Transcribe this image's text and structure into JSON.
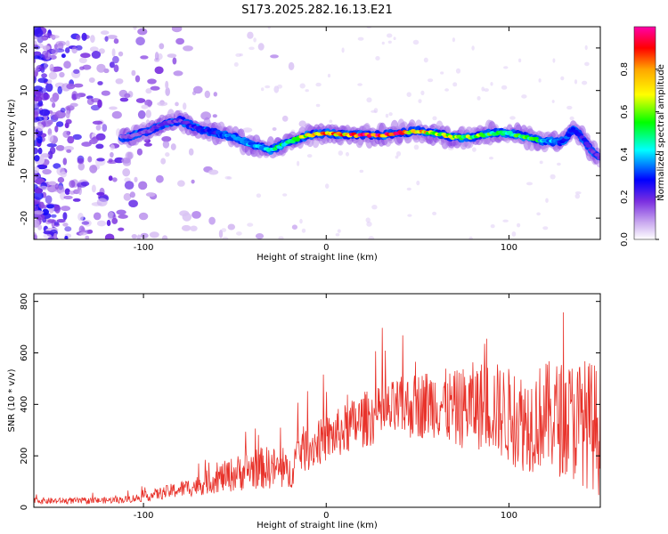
{
  "title": "S173.2025.282.16.13.E21",
  "chart_data": [
    {
      "type": "heatmap",
      "xlabel": "Height of straight line (km)",
      "ylabel": "Frequency (Hz)",
      "xlim": [
        -160,
        150
      ],
      "ylim": [
        -25,
        25
      ],
      "xticks": [
        -100,
        0,
        100
      ],
      "yticks": [
        -20,
        -10,
        0,
        10,
        20
      ],
      "colorbar": {
        "label": "Normalized spectral amplitude",
        "range": [
          0,
          1
        ],
        "ticks": [
          0.0,
          0.2,
          0.4,
          0.6,
          0.8
        ],
        "colors": [
          "#ffffff",
          "#c9a8ef",
          "#7a2ee0",
          "#0000ff",
          "#00ffff",
          "#00ff00",
          "#ffff00",
          "#ffa500",
          "#ff0000",
          "#ff00aa"
        ]
      },
      "ridge": {
        "x": [
          -110,
          -100,
          -90,
          -80,
          -70,
          -60,
          -50,
          -40,
          -30,
          -20,
          -10,
          0,
          10,
          20,
          30,
          40,
          50,
          60,
          70,
          80,
          90,
          100,
          110,
          120,
          130,
          135,
          140,
          145,
          150
        ],
        "freq": [
          -1,
          0,
          2,
          3,
          1,
          0,
          -1,
          -3,
          -4,
          -2,
          -0.5,
          0,
          -0.5,
          -0.5,
          -0.5,
          0,
          0.5,
          0,
          -1,
          -1,
          0,
          0,
          -1,
          -2,
          -2,
          1,
          -1,
          -4,
          -6
        ],
        "amplitude": [
          0.15,
          0.15,
          0.2,
          0.2,
          0.25,
          0.3,
          0.35,
          0.35,
          0.45,
          0.55,
          0.7,
          0.85,
          0.8,
          0.9,
          0.95,
          0.85,
          0.75,
          0.7,
          0.65,
          0.6,
          0.55,
          0.5,
          0.6,
          0.4,
          0.3,
          0.3,
          0.25,
          0.2,
          0.2
        ]
      }
    },
    {
      "type": "line",
      "xlabel": "Height of straight line (km)",
      "ylabel": "SNR (10 * v/v)",
      "xlim": [
        -160,
        150
      ],
      "ylim": [
        0,
        830
      ],
      "xticks": [
        -100,
        0,
        100
      ],
      "yticks": [
        0,
        200,
        400,
        600,
        800
      ],
      "color": "#e8322a",
      "series": [
        {
          "name": "SNR",
          "x": [
            -160,
            -150,
            -140,
            -130,
            -120,
            -110,
            -100,
            -90,
            -80,
            -70,
            -60,
            -50,
            -40,
            -30,
            -20,
            -15,
            -10,
            0,
            10,
            20,
            30,
            40,
            50,
            60,
            70,
            80,
            90,
            100,
            110,
            120,
            130,
            140,
            150
          ],
          "y": [
            25,
            25,
            25,
            25,
            27,
            30,
            40,
            55,
            70,
            85,
            110,
            130,
            150,
            155,
            130,
            220,
            230,
            265,
            300,
            340,
            360,
            385,
            395,
            410,
            380,
            395,
            395,
            355,
            330,
            360,
            340,
            335,
            300
          ],
          "spread": [
            12,
            12,
            12,
            12,
            12,
            14,
            18,
            25,
            32,
            40,
            55,
            70,
            80,
            85,
            70,
            90,
            90,
            90,
            100,
            110,
            110,
            120,
            130,
            140,
            150,
            170,
            180,
            190,
            200,
            210,
            230,
            250,
            260
          ]
        }
      ]
    }
  ]
}
